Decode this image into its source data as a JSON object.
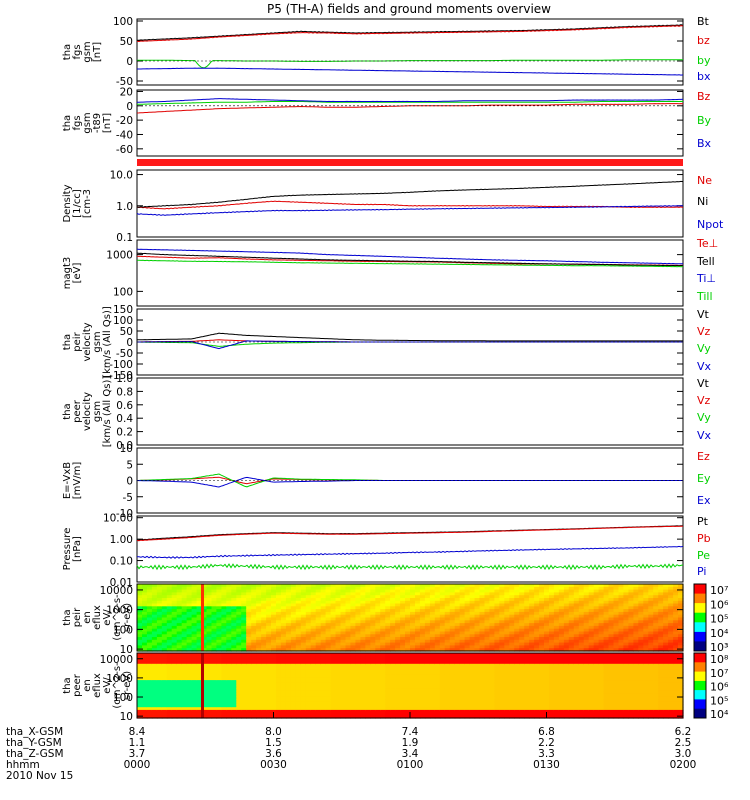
{
  "title": "P5 (TH-A) fields and ground moments overview",
  "date_label": "2010 Nov 15",
  "colors": {
    "black": "#000000",
    "red": "#e00000",
    "green": "#00d000",
    "blue": "#0000d0",
    "bar": "#ff1a1a"
  },
  "chart_data": [
    {
      "id": "fgs-gsm",
      "type": "line",
      "ylabel": [
        "tha",
        "fgs",
        "gsm",
        "[nT]"
      ],
      "yticks": [
        {
          "v": 100,
          "label": "100"
        },
        {
          "v": 50,
          "label": "50"
        },
        {
          "v": 0,
          "label": "0"
        },
        {
          "v": -50,
          "label": "-50"
        }
      ],
      "ylim": [
        -60,
        105
      ],
      "legend_placement": "right",
      "series": [
        {
          "name": "Bt",
          "color": "black",
          "values": [
            52,
            55,
            58,
            62,
            66,
            70,
            74,
            72,
            70,
            71,
            72,
            73,
            74,
            75,
            76,
            78,
            80,
            83,
            86,
            88,
            90
          ]
        },
        {
          "name": "bz",
          "color": "red",
          "values": [
            49,
            52,
            55,
            60,
            64,
            68,
            71,
            70,
            68,
            69,
            70,
            71,
            72,
            73,
            74,
            76,
            78,
            81,
            84,
            86,
            88
          ]
        },
        {
          "name": "by",
          "color": "green",
          "values": [
            2,
            2,
            1,
            1,
            0,
            0,
            -1,
            -1,
            0,
            0,
            1,
            1,
            1,
            1,
            2,
            2,
            2,
            2,
            3,
            3,
            3
          ]
        },
        {
          "name": "bx",
          "color": "blue",
          "values": [
            -20,
            -19,
            -18,
            -18,
            -19,
            -20,
            -21,
            -22,
            -23,
            -24,
            -25,
            -26,
            -27,
            -28,
            -29,
            -30,
            -31,
            -32,
            -33,
            -34,
            -35
          ]
        }
      ]
    },
    {
      "id": "fgs-gse",
      "type": "line",
      "ylabel": [
        "tha",
        "fgs",
        "gsm",
        "-t89",
        "[nT]"
      ],
      "yticks": [
        {
          "v": 20,
          "label": "20"
        },
        {
          "v": 0,
          "label": "0"
        },
        {
          "v": -20,
          "label": "-20"
        },
        {
          "v": -40,
          "label": "-40"
        },
        {
          "v": -60,
          "label": "-60"
        }
      ],
      "ylim": [
        -70,
        22
      ],
      "legend_placement": "right",
      "series": [
        {
          "name": "Bz",
          "color": "red",
          "values": [
            -10,
            -8,
            -6,
            -4,
            -3,
            -2,
            -1,
            -2,
            -2,
            -1,
            0,
            0,
            0,
            1,
            1,
            1,
            2,
            2,
            2,
            3,
            3
          ]
        },
        {
          "name": "By",
          "color": "green",
          "values": [
            2,
            3,
            4,
            5,
            5,
            6,
            6,
            5,
            5,
            5,
            5,
            5,
            5,
            5,
            5,
            5,
            5,
            6,
            6,
            6,
            6
          ]
        },
        {
          "name": "Bx",
          "color": "blue",
          "values": [
            5,
            6,
            8,
            10,
            9,
            8,
            7,
            6,
            6,
            6,
            6,
            6,
            7,
            7,
            7,
            7,
            8,
            8,
            8,
            8,
            9
          ]
        }
      ]
    },
    {
      "id": "density",
      "type": "line",
      "scale": "log",
      "ylabel": [
        "Density",
        "[1/cc]",
        "[cm-3"
      ],
      "yticks": [
        {
          "v": 10,
          "label": "10.0"
        },
        {
          "v": 1,
          "label": "1.0"
        },
        {
          "v": 0.1,
          "label": "0.1"
        }
      ],
      "ylim": [
        0.1,
        14
      ],
      "legend_placement": "right",
      "series": [
        {
          "name": "Ne",
          "color": "red",
          "values": [
            0.9,
            0.8,
            0.9,
            1.0,
            1.2,
            1.4,
            1.3,
            1.2,
            1.1,
            1.1,
            1.0,
            1.0,
            1.0,
            1.0,
            1.0,
            0.95,
            0.95,
            0.95,
            0.9,
            0.9,
            0.9
          ]
        },
        {
          "name": "Ni",
          "color": "black",
          "values": [
            0.9,
            1.0,
            1.1,
            1.3,
            1.6,
            2.0,
            2.2,
            2.3,
            2.4,
            2.5,
            2.7,
            3.0,
            3.2,
            3.4,
            3.6,
            3.9,
            4.2,
            4.6,
            5.0,
            5.5,
            6.0
          ]
        },
        {
          "name": "Npot",
          "color": "blue",
          "values": [
            0.55,
            0.5,
            0.55,
            0.6,
            0.65,
            0.7,
            0.7,
            0.72,
            0.74,
            0.75,
            0.78,
            0.8,
            0.82,
            0.84,
            0.86,
            0.88,
            0.9,
            0.92,
            0.95,
            0.98,
            1.0
          ]
        }
      ]
    },
    {
      "id": "temperature",
      "type": "line",
      "scale": "log",
      "ylabel": [
        "magt3",
        "[eV]"
      ],
      "yticks": [
        {
          "v": 1000,
          "label": "1000"
        },
        {
          "v": 100,
          "label": "100"
        }
      ],
      "ylim": [
        40,
        2500
      ],
      "legend_placement": "right",
      "series": [
        {
          "name": "Te⊥",
          "color": "red",
          "values": [
            900,
            850,
            800,
            820,
            760,
            720,
            700,
            680,
            660,
            650,
            640,
            630,
            600,
            580,
            560,
            560,
            550,
            540,
            530,
            520,
            510
          ]
        },
        {
          "name": "Tell",
          "color": "black",
          "values": [
            1100,
            1000,
            950,
            900,
            850,
            800,
            760,
            720,
            700,
            680,
            660,
            650,
            620,
            600,
            580,
            560,
            550,
            540,
            520,
            510,
            500
          ]
        },
        {
          "name": "Ti⊥",
          "color": "blue",
          "values": [
            1400,
            1350,
            1300,
            1250,
            1200,
            1150,
            1100,
            1000,
            950,
            900,
            850,
            800,
            760,
            720,
            700,
            680,
            650,
            620,
            600,
            580,
            560
          ]
        },
        {
          "name": "Till",
          "color": "green",
          "values": [
            700,
            680,
            660,
            650,
            640,
            620,
            600,
            590,
            580,
            570,
            560,
            550,
            540,
            530,
            520,
            510,
            500,
            500,
            490,
            480,
            470
          ]
        }
      ]
    },
    {
      "id": "peir-velocity",
      "type": "line",
      "ylabel": [
        "tha",
        "peir",
        "velocity",
        "gsm",
        "[km/s (All Qs)]"
      ],
      "yticks": [
        {
          "v": 150,
          "label": "150"
        },
        {
          "v": 100,
          "label": "100"
        },
        {
          "v": 50,
          "label": "50"
        },
        {
          "v": 0,
          "label": "0"
        },
        {
          "v": -50,
          "label": "-50"
        },
        {
          "v": -100,
          "label": "-100"
        },
        {
          "v": -150,
          "label": "-150"
        }
      ],
      "ylim": [
        -150,
        150
      ],
      "legend_placement": "right",
      "series": [
        {
          "name": "Vt",
          "color": "black",
          "values": [
            10,
            12,
            14,
            40,
            30,
            25,
            20,
            15,
            10,
            8,
            7,
            6,
            6,
            5,
            5,
            5,
            5,
            5,
            5,
            5,
            5
          ]
        },
        {
          "name": "Vz",
          "color": "red",
          "values": [
            0,
            2,
            3,
            10,
            5,
            3,
            2,
            1,
            0,
            0,
            0,
            0,
            0,
            0,
            0,
            0,
            0,
            0,
            0,
            0,
            0
          ]
        },
        {
          "name": "Vy",
          "color": "green",
          "values": [
            0,
            -2,
            -3,
            -20,
            -10,
            -5,
            -3,
            -1,
            0,
            0,
            0,
            0,
            0,
            0,
            0,
            0,
            0,
            0,
            0,
            0,
            0
          ]
        },
        {
          "name": "Vx",
          "color": "blue",
          "values": [
            0,
            1,
            2,
            -30,
            5,
            3,
            2,
            1,
            0,
            0,
            0,
            0,
            0,
            0,
            0,
            0,
            0,
            0,
            0,
            0,
            0
          ]
        }
      ]
    },
    {
      "id": "peer-velocity",
      "type": "line",
      "ylabel": [
        "tha",
        "peer",
        "velocity",
        "gsm",
        "[km/s (All Qs)]"
      ],
      "yticks": [
        {
          "v": 1,
          "label": "1.0"
        },
        {
          "v": 0.8,
          "label": "0.8"
        },
        {
          "v": 0.6,
          "label": "0.6"
        },
        {
          "v": 0.4,
          "label": "0.4"
        },
        {
          "v": 0.2,
          "label": "0.2"
        },
        {
          "v": 0,
          "label": "0.0"
        }
      ],
      "ylim": [
        0,
        1
      ],
      "legend_placement": "right",
      "series": [
        {
          "name": "Vt",
          "color": "black",
          "values": []
        },
        {
          "name": "Vz",
          "color": "red",
          "values": []
        },
        {
          "name": "Vy",
          "color": "green",
          "values": []
        },
        {
          "name": "Vx",
          "color": "blue",
          "values": []
        }
      ]
    },
    {
      "id": "efield",
      "type": "line",
      "ylabel": [
        "E=-VxB",
        "[mV/m]"
      ],
      "yticks": [
        {
          "v": 10,
          "label": "10"
        },
        {
          "v": 5,
          "label": "5"
        },
        {
          "v": 0,
          "label": "0"
        },
        {
          "v": -5,
          "label": "-5"
        },
        {
          "v": -10,
          "label": "-10"
        }
      ],
      "ylim": [
        -10,
        10
      ],
      "legend_placement": "right",
      "series": [
        {
          "name": "Ez",
          "color": "red",
          "values": [
            0,
            0.2,
            0.5,
            1,
            -1,
            0.5,
            0.3,
            0.2,
            0.1,
            0,
            0,
            0,
            0,
            0,
            0,
            0,
            0,
            0,
            0,
            0,
            0
          ]
        },
        {
          "name": "Ey",
          "color": "green",
          "values": [
            0,
            0.3,
            0.6,
            2,
            -2,
            0.8,
            0.4,
            0.3,
            0.2,
            0,
            0,
            0,
            0,
            0,
            0,
            0,
            0,
            0,
            0,
            0,
            0
          ]
        },
        {
          "name": "Ex",
          "color": "blue",
          "values": [
            0,
            -0.2,
            -0.5,
            -2,
            1,
            -0.5,
            -0.3,
            -0.2,
            0,
            0,
            0,
            0,
            0,
            0,
            0,
            0,
            0,
            0,
            0,
            0,
            0
          ]
        }
      ]
    },
    {
      "id": "pressure",
      "type": "line",
      "scale": "log",
      "ylabel": [
        "Pressure",
        "[nPa]"
      ],
      "yticks": [
        {
          "v": 10,
          "label": "10.00"
        },
        {
          "v": 1,
          "label": "1.00"
        },
        {
          "v": 0.1,
          "label": "0.10"
        },
        {
          "v": 0.01,
          "label": "0.01"
        }
      ],
      "ylim": [
        0.01,
        12
      ],
      "legend_placement": "right",
      "series": [
        {
          "name": "Pt",
          "color": "black",
          "values": [
            0.9,
            1.1,
            1.3,
            1.6,
            1.8,
            2.0,
            1.9,
            1.8,
            1.8,
            1.9,
            2.0,
            2.1,
            2.2,
            2.4,
            2.6,
            2.8,
            3.0,
            3.3,
            3.6,
            3.9,
            4.2
          ]
        },
        {
          "name": "Pb",
          "color": "red",
          "values": [
            0.85,
            1.0,
            1.2,
            1.5,
            1.7,
            1.9,
            1.8,
            1.7,
            1.7,
            1.8,
            1.9,
            2.0,
            2.1,
            2.3,
            2.5,
            2.7,
            2.9,
            3.2,
            3.5,
            3.8,
            4.0
          ]
        },
        {
          "name": "Pe",
          "color": "green",
          "values": [
            0.05,
            0.05,
            0.05,
            0.06,
            0.055,
            0.05,
            0.05,
            0.05,
            0.05,
            0.05,
            0.05,
            0.05,
            0.05,
            0.05,
            0.05,
            0.05,
            0.05,
            0.05,
            0.055,
            0.055,
            0.06
          ]
        },
        {
          "name": "Pi",
          "color": "blue",
          "values": [
            0.15,
            0.14,
            0.14,
            0.16,
            0.17,
            0.18,
            0.19,
            0.2,
            0.21,
            0.22,
            0.24,
            0.25,
            0.27,
            0.29,
            0.31,
            0.33,
            0.35,
            0.37,
            0.39,
            0.42,
            0.45
          ]
        }
      ]
    },
    {
      "id": "peir-spectrogram",
      "type": "heatmap",
      "ylabel": [
        "tha",
        "peir",
        "en",
        "eflux",
        "eV/",
        "(cm^2-s-",
        "sr-eV)"
      ],
      "yticks": [
        {
          "v": 10000,
          "label": "10000"
        },
        {
          "v": 1000,
          "label": "1000"
        },
        {
          "v": 100,
          "label": "100"
        },
        {
          "v": 10,
          "label": "10"
        }
      ],
      "ylim": [
        8,
        20000
      ],
      "scale": "log",
      "colorbar": [
        "10⁷",
        "10⁶",
        "10⁵",
        "10⁴",
        "10³"
      ]
    },
    {
      "id": "peer-spectrogram",
      "type": "heatmap",
      "ylabel": [
        "tha",
        "peer",
        "en",
        "eflux",
        "eV/",
        "(cm^2-s-",
        "sr-eV)"
      ],
      "yticks": [
        {
          "v": 10000,
          "label": "10000"
        },
        {
          "v": 1000,
          "label": "1000"
        },
        {
          "v": 100,
          "label": "100"
        },
        {
          "v": 10,
          "label": "10"
        }
      ],
      "ylim": [
        8,
        20000
      ],
      "scale": "log",
      "colorbar": [
        "10⁸",
        "10⁷",
        "10⁶",
        "10⁵",
        "10⁴"
      ]
    }
  ],
  "x_axis": {
    "tick_times": [
      "0000",
      "0030",
      "0100",
      "0130",
      "0200"
    ],
    "rows": [
      {
        "name": "tha_X-GSM",
        "values": [
          "8.4",
          "8.0",
          "7.4",
          "6.8",
          "6.2"
        ]
      },
      {
        "name": "tha_Y-GSM",
        "values": [
          "1.1",
          "1.5",
          "1.9",
          "2.2",
          "2.5"
        ]
      },
      {
        "name": "tha_Z-GSM",
        "values": [
          "3.7",
          "3.6",
          "3.4",
          "3.3",
          "3.0"
        ]
      },
      {
        "name": "hhmm",
        "values": [
          "0000",
          "0030",
          "0100",
          "0130",
          "0200"
        ]
      }
    ]
  }
}
